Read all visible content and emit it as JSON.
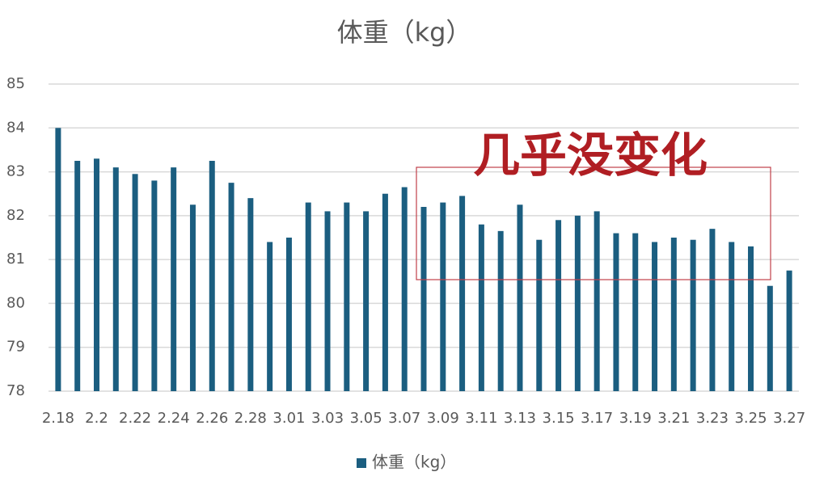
{
  "chart_data": {
    "type": "bar",
    "title": "体重（kg）",
    "categories": [
      "2.18",
      null,
      "2.2",
      null,
      "2.22",
      null,
      "2.24",
      null,
      "2.26",
      null,
      "2.28",
      null,
      "3.01",
      null,
      "3.03",
      null,
      "3.05",
      null,
      "3.07",
      null,
      "3.09",
      null,
      "3.11",
      null,
      "3.13",
      null,
      "3.15",
      null,
      "3.17",
      null,
      "3.19",
      null,
      "3.21",
      null,
      "3.23",
      null,
      "3.25",
      null,
      "3.27"
    ],
    "series": [
      {
        "name": "体重（kg）",
        "color": "#1b5e80",
        "values": [
          84.0,
          83.25,
          83.3,
          83.1,
          82.95,
          82.8,
          83.1,
          82.25,
          83.25,
          82.75,
          82.4,
          81.4,
          81.5,
          82.3,
          82.1,
          82.3,
          82.1,
          82.5,
          82.65,
          82.2,
          82.3,
          82.45,
          81.8,
          81.65,
          82.25,
          81.45,
          81.9,
          82.0,
          82.1,
          81.6,
          81.6,
          81.4,
          81.5,
          81.45,
          81.7,
          81.4,
          81.3,
          80.4,
          80.75
        ]
      }
    ],
    "ylim": [
      78,
      85
    ],
    "yticks": [
      78,
      79,
      80,
      81,
      82,
      83,
      84,
      85
    ],
    "grid": true,
    "annotation": "几乎没变化",
    "legend": "bottom"
  }
}
